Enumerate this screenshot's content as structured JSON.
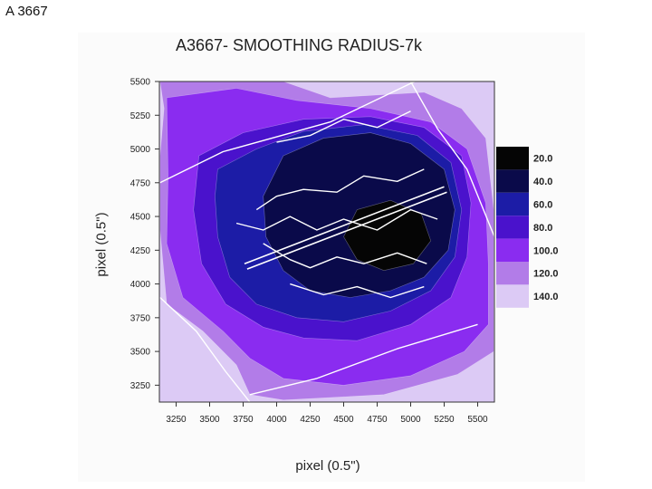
{
  "slide": {
    "title": "A 3667"
  },
  "chart_data": {
    "type": "heatmap",
    "title": "A3667- SMOOTHING RADIUS-7k",
    "xlabel": "pixel (0.5\")",
    "ylabel": "pixel (0.5\")",
    "xlim": [
      3125,
      5625
    ],
    "ylim": [
      3125,
      5500
    ],
    "x_ticks": [
      3250,
      3500,
      3750,
      4000,
      4250,
      4500,
      4750,
      5000,
      5250,
      5500
    ],
    "y_ticks": [
      3250,
      3500,
      3750,
      4000,
      4250,
      4500,
      4750,
      5000,
      5250,
      5500
    ],
    "legend": {
      "placement": "right",
      "levels": [
        {
          "label": "20.0",
          "color": "#050505"
        },
        {
          "label": "40.0",
          "color": "#0a0a4a"
        },
        {
          "label": "60.0",
          "color": "#1c1ca6"
        },
        {
          "label": "80.0",
          "color": "#4a12cc"
        },
        {
          "label": "100.0",
          "color": "#8a2cf0"
        },
        {
          "label": "120.0",
          "color": "#b27ce8"
        },
        {
          "label": "140.0",
          "color": "#dccaf5"
        }
      ]
    },
    "contour_regions": [
      {
        "level": "140.0",
        "polygon": [
          [
            3125,
            3125
          ],
          [
            5625,
            3125
          ],
          [
            5625,
            5500
          ],
          [
            3125,
            5500
          ]
        ]
      },
      {
        "level": "120.0",
        "polygon": [
          [
            3130,
            5500
          ],
          [
            4050,
            5500
          ],
          [
            4400,
            5380
          ],
          [
            5100,
            5420
          ],
          [
            5380,
            5300
          ],
          [
            5560,
            5080
          ],
          [
            5620,
            4550
          ],
          [
            5620,
            3500
          ],
          [
            5350,
            3330
          ],
          [
            4800,
            3180
          ],
          [
            4050,
            3140
          ],
          [
            3800,
            3180
          ],
          [
            3700,
            3400
          ],
          [
            3450,
            3650
          ],
          [
            3180,
            3850
          ],
          [
            3130,
            4400
          ],
          [
            3130,
            4950
          ],
          [
            3160,
            5300
          ]
        ]
      },
      {
        "level": "100.0",
        "polygon": [
          [
            3180,
            5380
          ],
          [
            3700,
            5450
          ],
          [
            4150,
            5360
          ],
          [
            4700,
            5300
          ],
          [
            5150,
            5200
          ],
          [
            5420,
            5000
          ],
          [
            5560,
            4600
          ],
          [
            5580,
            4150
          ],
          [
            5580,
            3700
          ],
          [
            5400,
            3500
          ],
          [
            5000,
            3320
          ],
          [
            4500,
            3250
          ],
          [
            4050,
            3300
          ],
          [
            3800,
            3450
          ],
          [
            3600,
            3650
          ],
          [
            3300,
            3900
          ],
          [
            3180,
            4300
          ],
          [
            3190,
            4800
          ]
        ]
      },
      {
        "level": "80.0",
        "polygon": [
          [
            3420,
            4950
          ],
          [
            3750,
            5120
          ],
          [
            4200,
            5220
          ],
          [
            4700,
            5240
          ],
          [
            5100,
            5160
          ],
          [
            5380,
            4950
          ],
          [
            5450,
            4600
          ],
          [
            5420,
            4200
          ],
          [
            5300,
            3900
          ],
          [
            5000,
            3700
          ],
          [
            4600,
            3580
          ],
          [
            4200,
            3600
          ],
          [
            3900,
            3680
          ],
          [
            3620,
            3850
          ],
          [
            3440,
            4150
          ],
          [
            3380,
            4550
          ]
        ]
      },
      {
        "level": "60.0",
        "polygon": [
          [
            3560,
            4850
          ],
          [
            3850,
            5000
          ],
          [
            4200,
            5130
          ],
          [
            4650,
            5180
          ],
          [
            5050,
            5100
          ],
          [
            5300,
            4900
          ],
          [
            5380,
            4550
          ],
          [
            5330,
            4200
          ],
          [
            5150,
            3950
          ],
          [
            4850,
            3800
          ],
          [
            4500,
            3720
          ],
          [
            4150,
            3750
          ],
          [
            3850,
            3850
          ],
          [
            3650,
            4050
          ],
          [
            3560,
            4350
          ],
          [
            3540,
            4650
          ]
        ]
      },
      {
        "level": "40.0",
        "polygon": [
          [
            4050,
            4950
          ],
          [
            4350,
            5080
          ],
          [
            4700,
            5120
          ],
          [
            5000,
            5040
          ],
          [
            5250,
            4850
          ],
          [
            5330,
            4550
          ],
          [
            5280,
            4250
          ],
          [
            5100,
            4050
          ],
          [
            4850,
            3950
          ],
          [
            4550,
            3900
          ],
          [
            4250,
            3950
          ],
          [
            4050,
            4100
          ],
          [
            3920,
            4350
          ],
          [
            3900,
            4650
          ]
        ]
      },
      {
        "level": "20.0",
        "polygon": [
          [
            4600,
            4550
          ],
          [
            4850,
            4620
          ],
          [
            5080,
            4520
          ],
          [
            5150,
            4320
          ],
          [
            5020,
            4150
          ],
          [
            4800,
            4100
          ],
          [
            4600,
            4180
          ],
          [
            4500,
            4350
          ]
        ]
      }
    ],
    "overlay_contours": [
      [
        [
          3130,
          4750
        ],
        [
          3600,
          4980
        ],
        [
          4400,
          5200
        ],
        [
          5030,
          5500
        ]
      ],
      [
        [
          3130,
          3900
        ],
        [
          3400,
          3650
        ],
        [
          3620,
          3350
        ],
        [
          3800,
          3125
        ]
      ],
      [
        [
          5000,
          5500
        ],
        [
          5200,
          5150
        ],
        [
          5420,
          4850
        ],
        [
          5625,
          4350
        ]
      ],
      [
        [
          3800,
          3180
        ],
        [
          4300,
          3300
        ],
        [
          4900,
          3520
        ],
        [
          5500,
          3700
        ]
      ],
      [
        [
          3700,
          4450
        ],
        [
          3900,
          4400
        ],
        [
          4100,
          4500
        ],
        [
          4300,
          4400
        ],
        [
          4500,
          4480
        ],
        [
          4750,
          4400
        ],
        [
          5000,
          4550
        ],
        [
          5200,
          4480
        ]
      ],
      [
        [
          3900,
          4300
        ],
        [
          4100,
          4180
        ],
        [
          4250,
          4120
        ],
        [
          4450,
          4200
        ],
        [
          4650,
          4150
        ],
        [
          4900,
          4230
        ],
        [
          5120,
          4150
        ]
      ],
      [
        [
          3850,
          4550
        ],
        [
          4000,
          4650
        ],
        [
          4200,
          4700
        ],
        [
          4450,
          4680
        ],
        [
          4650,
          4800
        ],
        [
          4900,
          4760
        ],
        [
          5100,
          4850
        ]
      ],
      [
        [
          4000,
          5050
        ],
        [
          4250,
          5100
        ],
        [
          4500,
          5220
        ],
        [
          4750,
          5160
        ],
        [
          5000,
          5280
        ]
      ],
      [
        [
          4100,
          4000
        ],
        [
          4350,
          3920
        ],
        [
          4600,
          3980
        ],
        [
          4850,
          3900
        ],
        [
          5100,
          3980
        ]
      ]
    ],
    "overlay_lines": [
      [
        [
          3760,
          4150
        ],
        [
          5250,
          4720
        ]
      ],
      [
        [
          3780,
          4110
        ],
        [
          5270,
          4680
        ]
      ]
    ],
    "grid": false
  }
}
